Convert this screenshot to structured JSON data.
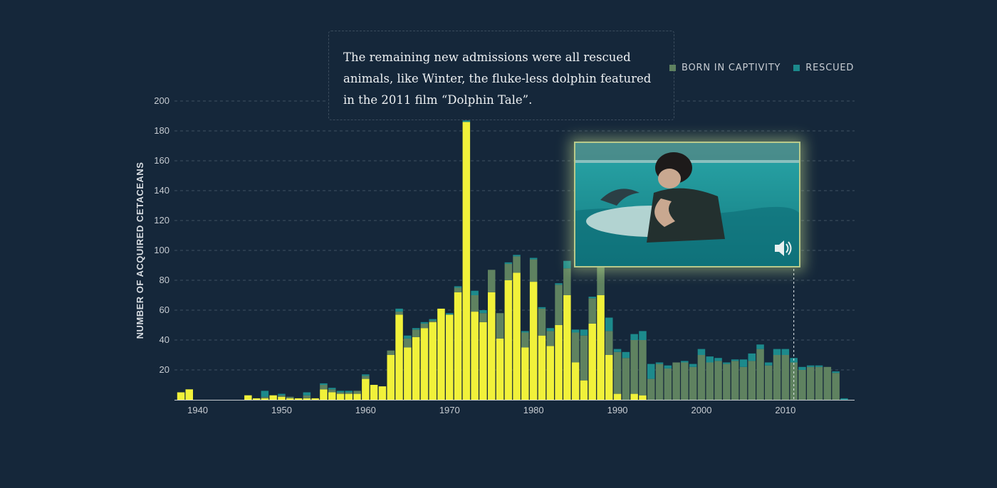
{
  "annotation": {
    "text": "The remaining new admissions were all rescued animals, like Winter, the fluke-less dolphin featured in the 2011 film “Dolphin Tale”."
  },
  "legend": {
    "items": [
      {
        "label": "BORN IN CAPTIVITY",
        "color": "#5f8260"
      },
      {
        "label": "RESCUED",
        "color": "#1c8a8c"
      }
    ]
  },
  "colors": {
    "background": "#15273a",
    "wild": "#f1f13a",
    "captivity": "#5f8260",
    "rescued": "#1c8a8c"
  },
  "video": {
    "icon": "speaker-icon"
  },
  "chart_data": {
    "type": "bar",
    "stacked": true,
    "ylabel": "NUMBER OF ACQUIRED CETACEANS",
    "ylim": [
      0,
      200
    ],
    "yticks": [
      20,
      40,
      60,
      80,
      100,
      120,
      140,
      160,
      180,
      200
    ],
    "xticks": [
      1940,
      1950,
      1960,
      1970,
      1980,
      1990,
      2000,
      2010
    ],
    "grid": true,
    "legend_position": "top-right",
    "marker_year": 2011,
    "x": [
      1938,
      1939,
      1940,
      1941,
      1942,
      1943,
      1944,
      1945,
      1946,
      1947,
      1948,
      1949,
      1950,
      1951,
      1952,
      1953,
      1954,
      1955,
      1956,
      1957,
      1958,
      1959,
      1960,
      1961,
      1962,
      1963,
      1964,
      1965,
      1966,
      1967,
      1968,
      1969,
      1970,
      1971,
      1972,
      1973,
      1974,
      1975,
      1976,
      1977,
      1978,
      1979,
      1980,
      1981,
      1982,
      1983,
      1984,
      1985,
      1986,
      1987,
      1988,
      1989,
      1990,
      1991,
      1992,
      1993,
      1994,
      1995,
      1996,
      1997,
      1998,
      1999,
      2000,
      2001,
      2002,
      2003,
      2004,
      2005,
      2006,
      2007,
      2008,
      2009,
      2010,
      2011,
      2012,
      2013,
      2014,
      2015,
      2016,
      2017
    ],
    "series": [
      {
        "values": [
          5,
          7,
          0,
          0,
          0,
          0,
          0,
          0,
          3,
          1,
          1,
          3,
          2,
          1,
          1,
          1,
          1,
          7,
          5,
          4,
          4,
          4,
          14,
          10,
          9,
          30,
          57,
          35,
          42,
          48,
          52,
          61,
          57,
          72,
          186,
          59,
          52,
          72,
          41,
          80,
          85,
          35,
          79,
          43,
          36,
          50,
          70,
          25,
          13,
          51,
          70,
          30,
          4,
          0,
          4,
          3,
          0,
          0,
          0,
          0,
          0,
          0,
          0,
          0,
          0,
          0,
          0,
          0,
          0,
          0,
          0,
          0,
          0,
          0,
          0,
          0,
          0,
          0,
          0,
          0
        ]
      },
      {
        "values": [
          0,
          0,
          0,
          0,
          0,
          0,
          0,
          0,
          0,
          0,
          1,
          0,
          1,
          1,
          0,
          2,
          0,
          3,
          2,
          1,
          1,
          2,
          2,
          0,
          0,
          3,
          2,
          6,
          5,
          3,
          1,
          0,
          0,
          3,
          0,
          11,
          6,
          15,
          17,
          11,
          11,
          10,
          15,
          18,
          10,
          27,
          18,
          20,
          30,
          17,
          19,
          16,
          28,
          28,
          36,
          37,
          14,
          24,
          21,
          25,
          25,
          22,
          30,
          25,
          26,
          24,
          26,
          22,
          26,
          34,
          23,
          30,
          30,
          25,
          20,
          22,
          22,
          22,
          18,
          0
        ]
      },
      {
        "values": [
          0,
          0,
          0,
          0,
          0,
          0,
          0,
          0,
          0,
          0,
          4,
          0,
          1,
          0,
          0,
          2,
          0,
          1,
          1,
          1,
          1,
          0,
          1,
          0,
          0,
          0,
          2,
          2,
          1,
          1,
          1,
          0,
          1,
          1,
          1,
          3,
          2,
          0,
          0,
          1,
          1,
          1,
          1,
          1,
          2,
          1,
          5,
          2,
          4,
          1,
          1,
          9,
          2,
          4,
          4,
          6,
          10,
          1,
          2,
          0,
          1,
          2,
          4,
          4,
          2,
          1,
          1,
          5,
          5,
          3,
          2,
          4,
          4,
          3,
          2,
          1,
          1,
          0,
          1,
          1
        ]
      }
    ]
  }
}
